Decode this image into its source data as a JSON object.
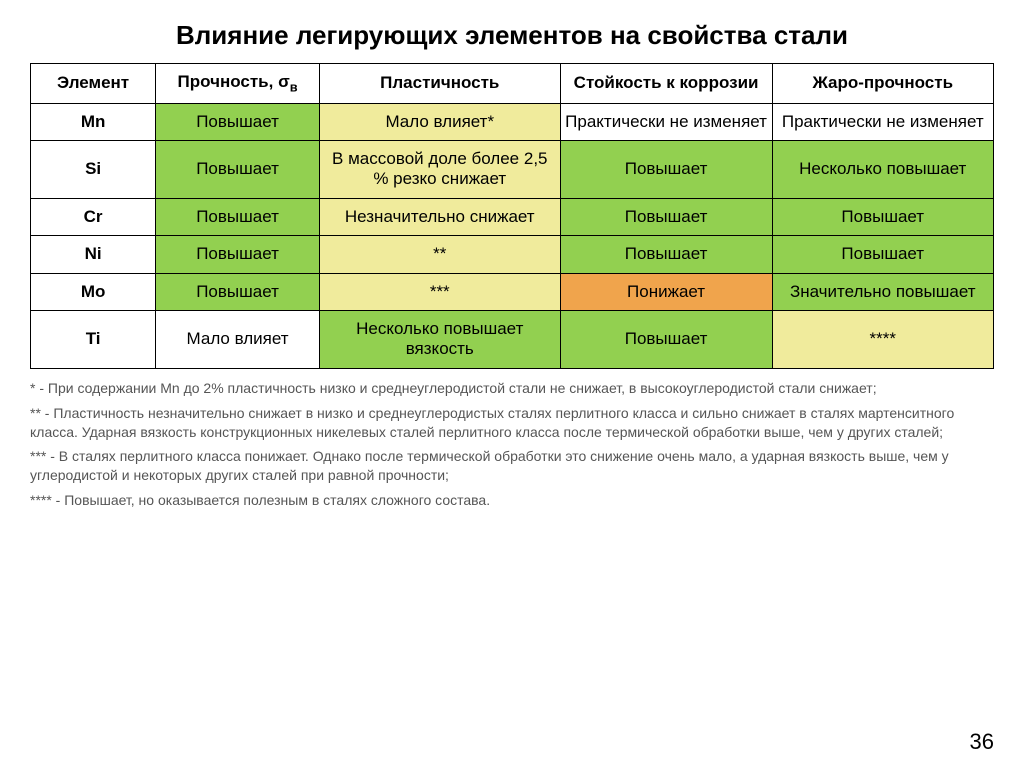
{
  "title": "Влияние легирующих элементов на свойства стали",
  "header": {
    "element": "Элемент",
    "strength_pre": "Прочность, σ",
    "strength_sub": "в",
    "plasticity": "Пластичность",
    "corrosion": "Стойкость к коррозии",
    "heat": "Жаро-прочность"
  },
  "colors": {
    "green": "#92d050",
    "yellow": "#f0eb9c",
    "orange": "#f0a44c",
    "white": "#ffffff"
  },
  "rows": [
    {
      "el": "Mn",
      "cells": [
        {
          "text": "Повышает",
          "color": "green"
        },
        {
          "text": "Мало влияет*",
          "color": "yellow"
        },
        {
          "text": "Практически не изменяет",
          "color": "white"
        },
        {
          "text": "Практически не изменяет",
          "color": "white"
        }
      ]
    },
    {
      "el": "Si",
      "cells": [
        {
          "text": "Повышает",
          "color": "green"
        },
        {
          "text": "В массовой доле более 2,5 % резко снижает",
          "color": "yellow"
        },
        {
          "text": "Повышает",
          "color": "green"
        },
        {
          "text": "Несколько повышает",
          "color": "green"
        }
      ]
    },
    {
      "el": "Cr",
      "cells": [
        {
          "text": "Повышает",
          "color": "green"
        },
        {
          "text": "Незначительно снижает",
          "color": "yellow"
        },
        {
          "text": "Повышает",
          "color": "green"
        },
        {
          "text": "Повышает",
          "color": "green"
        }
      ]
    },
    {
      "el": "Ni",
      "cells": [
        {
          "text": "Повышает",
          "color": "green"
        },
        {
          "text": "**",
          "color": "yellow"
        },
        {
          "text": "Повышает",
          "color": "green"
        },
        {
          "text": "Повышает",
          "color": "green"
        }
      ]
    },
    {
      "el": "Mo",
      "cells": [
        {
          "text": "Повышает",
          "color": "green"
        },
        {
          "text": "***",
          "color": "yellow"
        },
        {
          "text": "Понижает",
          "color": "orange"
        },
        {
          "text": "Значительно повышает",
          "color": "green"
        }
      ]
    },
    {
      "el": "Ti",
      "cells": [
        {
          "text": "Мало влияет",
          "color": "white"
        },
        {
          "text": "Несколько повышает вязкость",
          "color": "green"
        },
        {
          "text": "Повышает",
          "color": "green"
        },
        {
          "text": "****",
          "color": "yellow"
        }
      ]
    }
  ],
  "notes": [
    "* - При содержании Mn до 2% пластичность низко и среднеуглеродистой стали не снижает, в высокоуглеродистой стали снижает;",
    "** - Пластичность незначительно снижает в низко и среднеуглеродистых сталях перлитного класса и сильно снижает в сталях мартенситного класса. Ударная вязкость конструкционных никелевых сталей перлитного класса после термической обработки выше, чем у других сталей;",
    "*** - В сталях перлитного класса понижает. Однако после термической обработки это снижение очень мало, а ударная вязкость выше, чем у углеродистой и некоторых других сталей при равной прочности;",
    "**** - Повышает, но оказывается полезным в сталях сложного состава."
  ],
  "page_number": "36"
}
